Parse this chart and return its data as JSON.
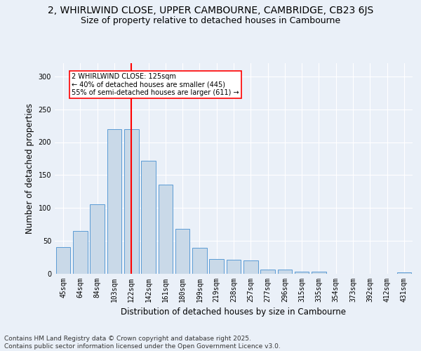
{
  "title": "2, WHIRLWIND CLOSE, UPPER CAMBOURNE, CAMBRIDGE, CB23 6JS",
  "subtitle": "Size of property relative to detached houses in Cambourne",
  "xlabel": "Distribution of detached houses by size in Cambourne",
  "ylabel": "Number of detached properties",
  "categories": [
    "45sqm",
    "64sqm",
    "84sqm",
    "103sqm",
    "122sqm",
    "142sqm",
    "161sqm",
    "180sqm",
    "199sqm",
    "219sqm",
    "238sqm",
    "257sqm",
    "277sqm",
    "296sqm",
    "315sqm",
    "335sqm",
    "354sqm",
    "373sqm",
    "392sqm",
    "412sqm",
    "431sqm"
  ],
  "values": [
    41,
    65,
    106,
    220,
    220,
    172,
    135,
    68,
    40,
    22,
    21,
    20,
    6,
    6,
    3,
    3,
    0,
    0,
    0,
    0,
    2
  ],
  "bar_color": "#c9d9e8",
  "bar_edge_color": "#5b9bd5",
  "vline_x_index": 4,
  "vline_color": "red",
  "annotation_text": "2 WHIRLWIND CLOSE: 125sqm\n← 40% of detached houses are smaller (445)\n55% of semi-detached houses are larger (611) →",
  "annotation_box_color": "white",
  "annotation_box_edge_color": "red",
  "ylim": [
    0,
    320
  ],
  "yticks": [
    0,
    50,
    100,
    150,
    200,
    250,
    300
  ],
  "footer_text": "Contains HM Land Registry data © Crown copyright and database right 2025.\nContains public sector information licensed under the Open Government Licence v3.0.",
  "background_color": "#eaf0f8",
  "plot_background_color": "#eaf0f8",
  "title_fontsize": 10,
  "subtitle_fontsize": 9,
  "axis_label_fontsize": 8.5,
  "tick_fontsize": 7,
  "footer_fontsize": 6.5
}
